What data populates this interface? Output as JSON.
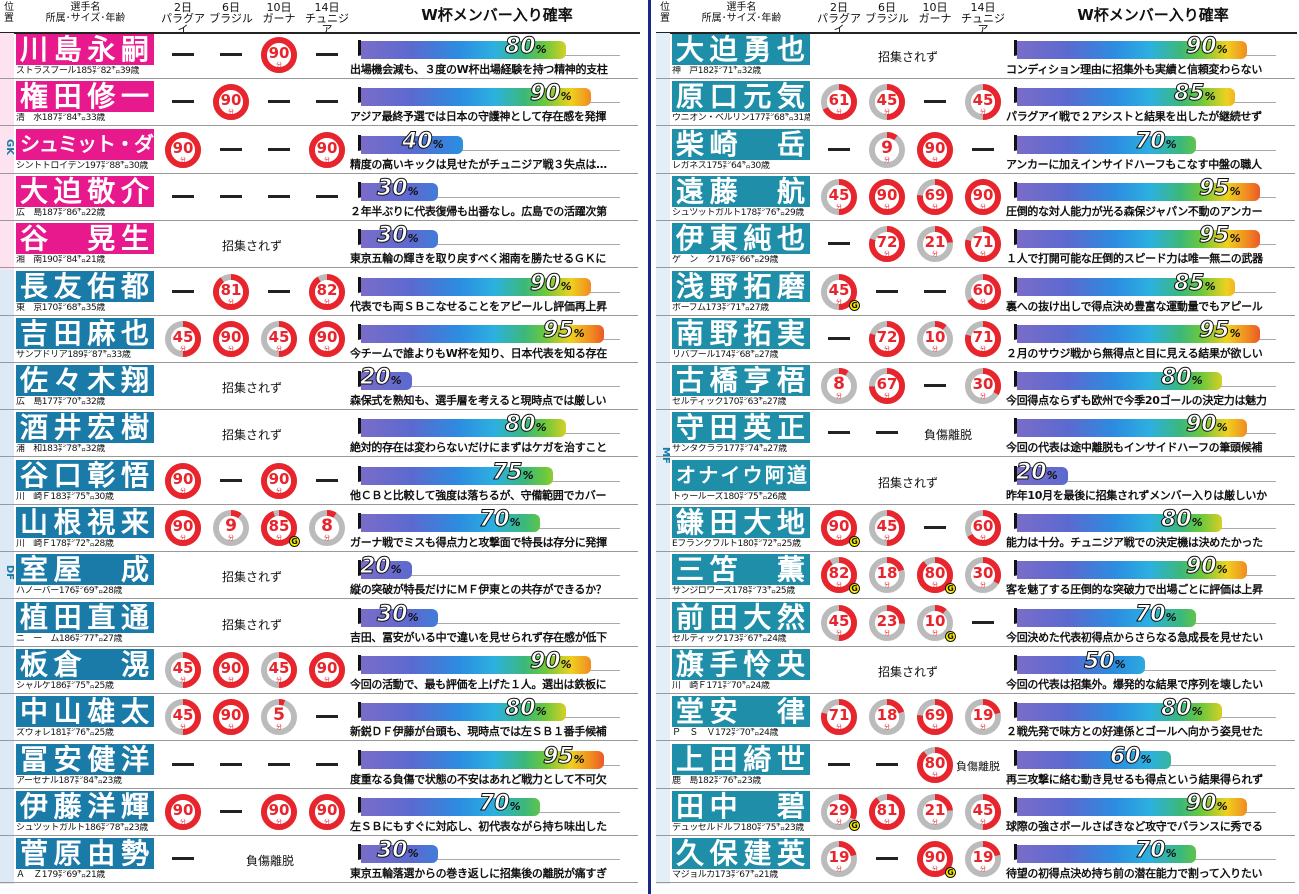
{
  "header": {
    "pos": "位\n置",
    "player": "選手名\n所属･サイズ･年齢",
    "matches": [
      "2日\nパラグアイ",
      "6日\nブラジル",
      "10日\nガーナ",
      "14日\nチュニジア"
    ],
    "prob_title": "W杯メンバー入り確率",
    "minute_unit": "分",
    "not_called": "招集されず",
    "injured": "負傷離脱",
    "pct_unit": "%",
    "goal_mark": "G"
  },
  "positions": {
    "gk": "GK",
    "df": "DF",
    "mf": "MF",
    "fw": "FW"
  },
  "colors": {
    "gk": "#e8198c",
    "df": "#1a7aa8",
    "mf": "#1f8ea8",
    "minutes_red": "#e8242c",
    "minutes_gray": "#bbbbbb"
  },
  "left": [
    {
      "pos": "gk",
      "name": "川島永嗣",
      "club": "ストラスブール185㌢82㌔39歳",
      "m": [
        "-",
        "-",
        "90",
        "-"
      ],
      "g": [
        0,
        0,
        0,
        0
      ],
      "pct": 80,
      "comment": "出場機会減も、３度のW杯出場経験を持つ精神的支柱"
    },
    {
      "pos": "gk",
      "name": "権田修一",
      "club": "清　水187㌢84㌔33歳",
      "m": [
        "-",
        "90",
        "-",
        "-"
      ],
      "g": [
        0,
        0,
        0,
        0
      ],
      "pct": 90,
      "comment": "アジア最終予選では日本の守護神として存在感を発揮"
    },
    {
      "pos": "gk",
      "name": "シュミット・ダニエル",
      "club": "シントトロイデン197㌢88㌔30歳",
      "m": [
        "90",
        "-",
        "-",
        "90"
      ],
      "g": [
        0,
        0,
        0,
        0
      ],
      "pct": 40,
      "comment": "精度の高いキックは見せたがチュニジア戦３失点は…",
      "small": true
    },
    {
      "pos": "gk",
      "name": "大迫敬介",
      "club": "広　島187㌢86㌔22歳",
      "m": [
        "-",
        "-",
        "-",
        "-"
      ],
      "g": [
        0,
        0,
        0,
        0
      ],
      "pct": 30,
      "comment": "２年半ぶりに代表復帰も出番なし。広島での活躍次第"
    },
    {
      "pos": "gk",
      "name": "谷　晃生",
      "club": "湘　南190㌢84㌔21歳",
      "m": [],
      "status": "not",
      "pct": 30,
      "comment": "東京五輪の輝きを取り戻すべく湘南を勝たせるＧＫに"
    },
    {
      "pos": "df",
      "name": "長友佑都",
      "club": "東　京170㌢68㌔35歳",
      "m": [
        "-",
        "81",
        "-",
        "82"
      ],
      "g": [
        0,
        0,
        0,
        0
      ],
      "pct": 90,
      "comment": "代表でも両ＳＢこなせることをアピールし評価再上昇"
    },
    {
      "pos": "df",
      "name": "吉田麻也",
      "club": "サンプドリア189㌢87㌔33歳",
      "m": [
        "45",
        "90",
        "45",
        "90"
      ],
      "g": [
        0,
        0,
        0,
        0
      ],
      "pct": 95,
      "comment": "今チームで誰よりもW杯を知り、日本代表を知る存在"
    },
    {
      "pos": "df",
      "name": "佐々木翔",
      "club": "広　島177㌢70㌔32歳",
      "m": [],
      "status": "not",
      "pct": 20,
      "comment": "森保式を熟知も、選手層を考えると現時点では厳しい"
    },
    {
      "pos": "df",
      "name": "酒井宏樹",
      "club": "浦　和183㌢78㌔32歳",
      "m": [],
      "status": "not",
      "pct": 80,
      "comment": "絶対的存在は変わらないだけにまずはケガを治すこと"
    },
    {
      "pos": "df",
      "name": "谷口彰悟",
      "club": "川　崎Ｆ183㌢75㌔30歳",
      "m": [
        "90",
        "-",
        "90",
        "-"
      ],
      "g": [
        0,
        0,
        0,
        0
      ],
      "pct": 75,
      "comment": "他ＣＢと比較して強度は落ちるが、守備範囲でカバー"
    },
    {
      "pos": "df",
      "name": "山根視来",
      "club": "川　崎Ｆ178㌢72㌔28歳",
      "m": [
        "90",
        "9",
        "85",
        "8"
      ],
      "g": [
        0,
        0,
        1,
        0
      ],
      "pct": 70,
      "comment": "ガーナ戦でミスも得点力と攻撃面で特長は存分に発揮"
    },
    {
      "pos": "df",
      "name": "室屋　成",
      "club": "ハノーバー176㌢69㌔28歳",
      "m": [],
      "status": "not",
      "pct": 20,
      "comment": "縦の突破が特長だけにＭＦ伊東との共存ができるか？"
    },
    {
      "pos": "df",
      "name": "植田直通",
      "club": "ニ　ー　ム186㌢77㌔27歳",
      "m": [],
      "status": "not",
      "pct": 30,
      "comment": "吉田、冨安がいる中で違いを見せられず存在感が低下"
    },
    {
      "pos": "df",
      "name": "板倉　滉",
      "club": "シャルケ186㌢75㌔25歳",
      "m": [
        "45",
        "90",
        "45",
        "90"
      ],
      "g": [
        0,
        0,
        0,
        0
      ],
      "pct": 90,
      "comment": "今回の活動で、最も評価を上げた１人。選出は鉄板に"
    },
    {
      "pos": "df",
      "name": "中山雄太",
      "club": "ズウォレ181㌢76㌔25歳",
      "m": [
        "45",
        "90",
        "5",
        "-"
      ],
      "g": [
        0,
        0,
        0,
        0
      ],
      "pct": 80,
      "comment": "新鋭ＤＦ伊藤が台頭も、現時点では左ＳＢ１番手候補"
    },
    {
      "pos": "df",
      "name": "冨安健洋",
      "club": "アーセナル187㌢84㌔23歳",
      "m": [
        "-",
        "-",
        "-",
        "-"
      ],
      "g": [
        0,
        0,
        0,
        0
      ],
      "pct": 95,
      "comment": "度重なる負傷で状態の不安はあれど戦力として不可欠"
    },
    {
      "pos": "df",
      "name": "伊藤洋輝",
      "club": "シュツットガルト186㌢78㌔23歳",
      "m": [
        "90",
        "-",
        "90",
        "90"
      ],
      "g": [
        0,
        0,
        0,
        0
      ],
      "pct": 70,
      "comment": "左ＳＢにもすぐに対応し、初代表ながら持ち味出した"
    },
    {
      "pos": "df",
      "name": "菅原由勢",
      "club": "Ａ　Ｚ179㌢69㌔21歳",
      "m": [
        "-"
      ],
      "status": "inj",
      "pct": 30,
      "comment": "東京五輪落選からの巻き返しに招集後の離脱が痛すぎ"
    }
  ],
  "right": [
    {
      "pos": "mf",
      "name": "大迫勇也",
      "club": "神　戸182㌢71㌔32歳",
      "m": [],
      "status": "not",
      "pct": 90,
      "comment": "コンディション理由に招集外も実績と信頼変わらない"
    },
    {
      "pos": "mf",
      "name": "原口元気",
      "club": "ウニオン・ベルリン177㌢68㌔31歳",
      "m": [
        "61",
        "45",
        "-",
        "45"
      ],
      "g": [
        0,
        0,
        0,
        0
      ],
      "pct": 85,
      "comment": "パラグアイ戦で２アシストと結果を出したが継続せず"
    },
    {
      "pos": "mf",
      "name": "柴崎　岳",
      "club": "レガネス175㌢64㌔30歳",
      "m": [
        "-",
        "9",
        "90",
        "-"
      ],
      "g": [
        0,
        0,
        0,
        0
      ],
      "pct": 70,
      "comment": "アンカーに加えインサイドハーフもこなす中盤の職人"
    },
    {
      "pos": "mf",
      "name": "遠藤　航",
      "club": "シュツットガルト178㌢76㌔29歳",
      "m": [
        "45",
        "90",
        "69",
        "90"
      ],
      "g": [
        0,
        0,
        0,
        0
      ],
      "pct": 95,
      "comment": "圧倒的な対人能力が光る森保ジャパン不動のアンカー"
    },
    {
      "pos": "mf",
      "name": "伊東純也",
      "club": "ゲ　ン　ク176㌢66㌔29歳",
      "m": [
        "-",
        "72",
        "21",
        "71"
      ],
      "g": [
        0,
        0,
        0,
        0
      ],
      "pct": 95,
      "comment": "１人で打開可能な圧倒的スピード力は唯一無二の武器"
    },
    {
      "pos": "mf",
      "name": "浅野拓磨",
      "club": "ボーフム173㌢71㌔27歳",
      "m": [
        "45",
        "-",
        "-",
        "60"
      ],
      "g": [
        1,
        0,
        0,
        0
      ],
      "pct": 85,
      "comment": "裏への抜け出しで得点決め豊富な運動量でもアピール"
    },
    {
      "pos": "mf",
      "name": "南野拓実",
      "club": "リバプール174㌢68㌔27歳",
      "m": [
        "-",
        "72",
        "10",
        "71"
      ],
      "g": [
        0,
        0,
        0,
        0
      ],
      "pct": 95,
      "comment": "２月のサウジ戦から無得点と目に見える結果が欲しい"
    },
    {
      "pos": "mf",
      "name": "古橋亨梧",
      "club": "セルティック170㌢63㌔27歳",
      "m": [
        "8",
        "67",
        "-",
        "30"
      ],
      "g": [
        0,
        0,
        0,
        0
      ],
      "pct": 80,
      "comment": "今回得点ならずも欧州で今季20ゴールの決定力は魅力"
    },
    {
      "pos": "mf",
      "name": "守田英正",
      "club": "サンタクララ177㌢74㌔27歳",
      "m": [
        "-",
        "-"
      ],
      "status": "inj2",
      "pct": 90,
      "comment": "今回の代表は途中離脱もインサイドハーフの筆頭候補"
    },
    {
      "pos": "mf",
      "name": "オナイウ阿道",
      "club": "トゥールーズ180㌢75㌔26歳",
      "m": [],
      "status": "not",
      "pct": 20,
      "comment": "昨年10月を最後に招集されずメンバー入りは厳しいか",
      "small": true
    },
    {
      "pos": "mf",
      "name": "鎌田大地",
      "club": "Eフランクフルト180㌢72㌔25歳",
      "m": [
        "90",
        "45",
        "-",
        "60"
      ],
      "g": [
        1,
        0,
        0,
        0
      ],
      "pct": 80,
      "comment": "能力は十分。チュニジア戦での決定機は決めたかった"
    },
    {
      "pos": "mf",
      "name": "三笘　薫",
      "club": "サンジロワーズ178㌢73㌔25歳",
      "m": [
        "82",
        "18",
        "80",
        "30"
      ],
      "g": [
        1,
        0,
        1,
        0
      ],
      "pct": 90,
      "comment": "客を魅了する圧倒的な突破力で出場ごとに評価は上昇"
    },
    {
      "pos": "mf",
      "name": "前田大然",
      "club": "セルティック173㌢67㌔24歳",
      "m": [
        "45",
        "23",
        "10",
        "-"
      ],
      "g": [
        0,
        0,
        1,
        0
      ],
      "pct": 70,
      "comment": "今回決めた代表初得点からさらなる急成長を見せたい"
    },
    {
      "pos": "mf",
      "name": "旗手怜央",
      "club": "川　崎Ｆ171㌢70㌔24歳",
      "m": [],
      "status": "not",
      "pct": 50,
      "comment": "今回の代表は招集外。爆発的な結果で序列を壊したい"
    },
    {
      "pos": "mf",
      "name": "堂安　律",
      "club": "Ｐ　Ｓ　Ｖ172㌢70㌔24歳",
      "m": [
        "71",
        "18",
        "69",
        "19"
      ],
      "g": [
        0,
        0,
        0,
        0
      ],
      "pct": 80,
      "comment": "２戦先発で味方との好連係とゴールへ向かう姿見せた"
    },
    {
      "pos": "mf",
      "name": "上田綺世",
      "club": "鹿　島182㌢76㌔23歳",
      "m": [
        "-",
        "-",
        "80"
      ],
      "status": "inj3",
      "pct": 60,
      "comment": "再三攻撃に絡む動き見せるも得点という結果得られず"
    },
    {
      "pos": "mf",
      "name": "田中　碧",
      "club": "デュッセルドルフ180㌢75㌔23歳",
      "m": [
        "29",
        "81",
        "21",
        "45"
      ],
      "g": [
        1,
        0,
        0,
        0
      ],
      "pct": 90,
      "comment": "球際の強さボールさばきなど攻守でバランスに秀でる"
    },
    {
      "pos": "mf",
      "name": "久保建英",
      "club": "マジョルカ173㌢67㌔21歳",
      "m": [
        "19",
        "-",
        "90",
        "19"
      ],
      "g": [
        0,
        0,
        1,
        0
      ],
      "pct": 70,
      "comment": "待望の初得点決め持ち前の潜在能力で割って入りたい"
    }
  ]
}
